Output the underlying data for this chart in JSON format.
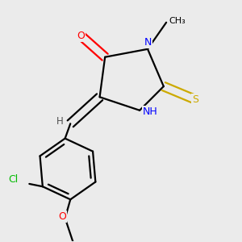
{
  "bg_color": "#ebebeb",
  "atom_colors": {
    "O": "#ff0000",
    "N": "#0000ff",
    "S": "#ccaa00",
    "Cl": "#00bb00",
    "C": "#000000",
    "H": "#505050"
  },
  "bond_color": "#000000",
  "lw": 1.6
}
